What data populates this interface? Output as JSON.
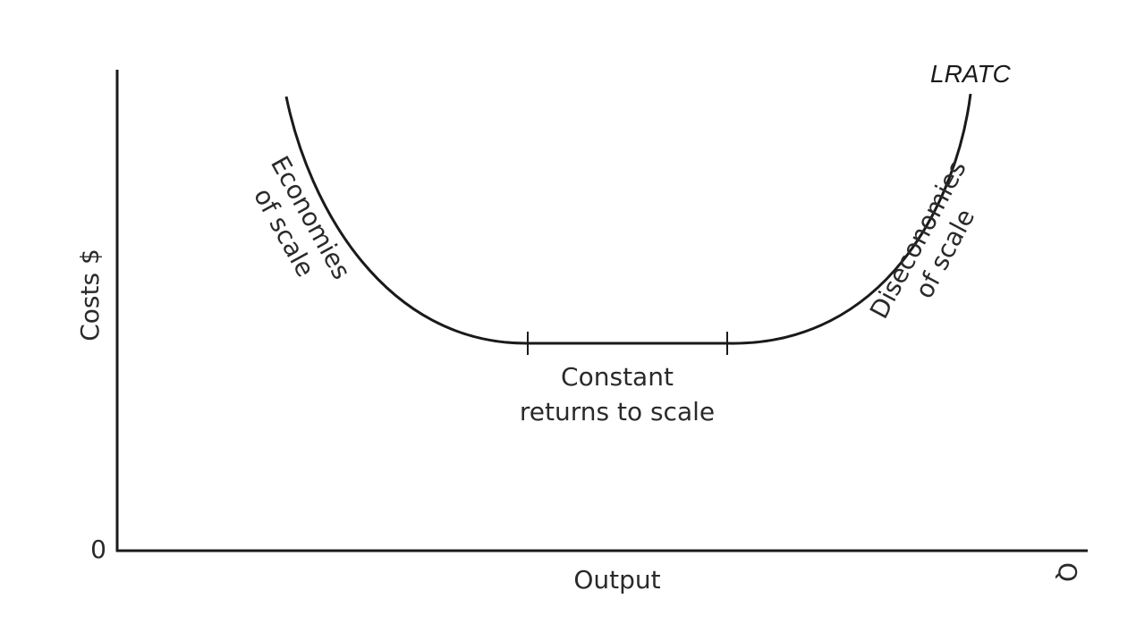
{
  "diagram": {
    "curve_label": "LRATC",
    "y_axis_label": "Costs $",
    "x_axis_label": "Output",
    "x_axis_end_label": "Q",
    "origin_label": "0",
    "regions": {
      "economies": {
        "line1": "Economies",
        "line2": "of scale"
      },
      "constant": {
        "line1": "Constant",
        "line2": "returns to scale"
      },
      "diseconomies": {
        "line1": "Diseconomies",
        "line2": "of scale"
      }
    }
  }
}
